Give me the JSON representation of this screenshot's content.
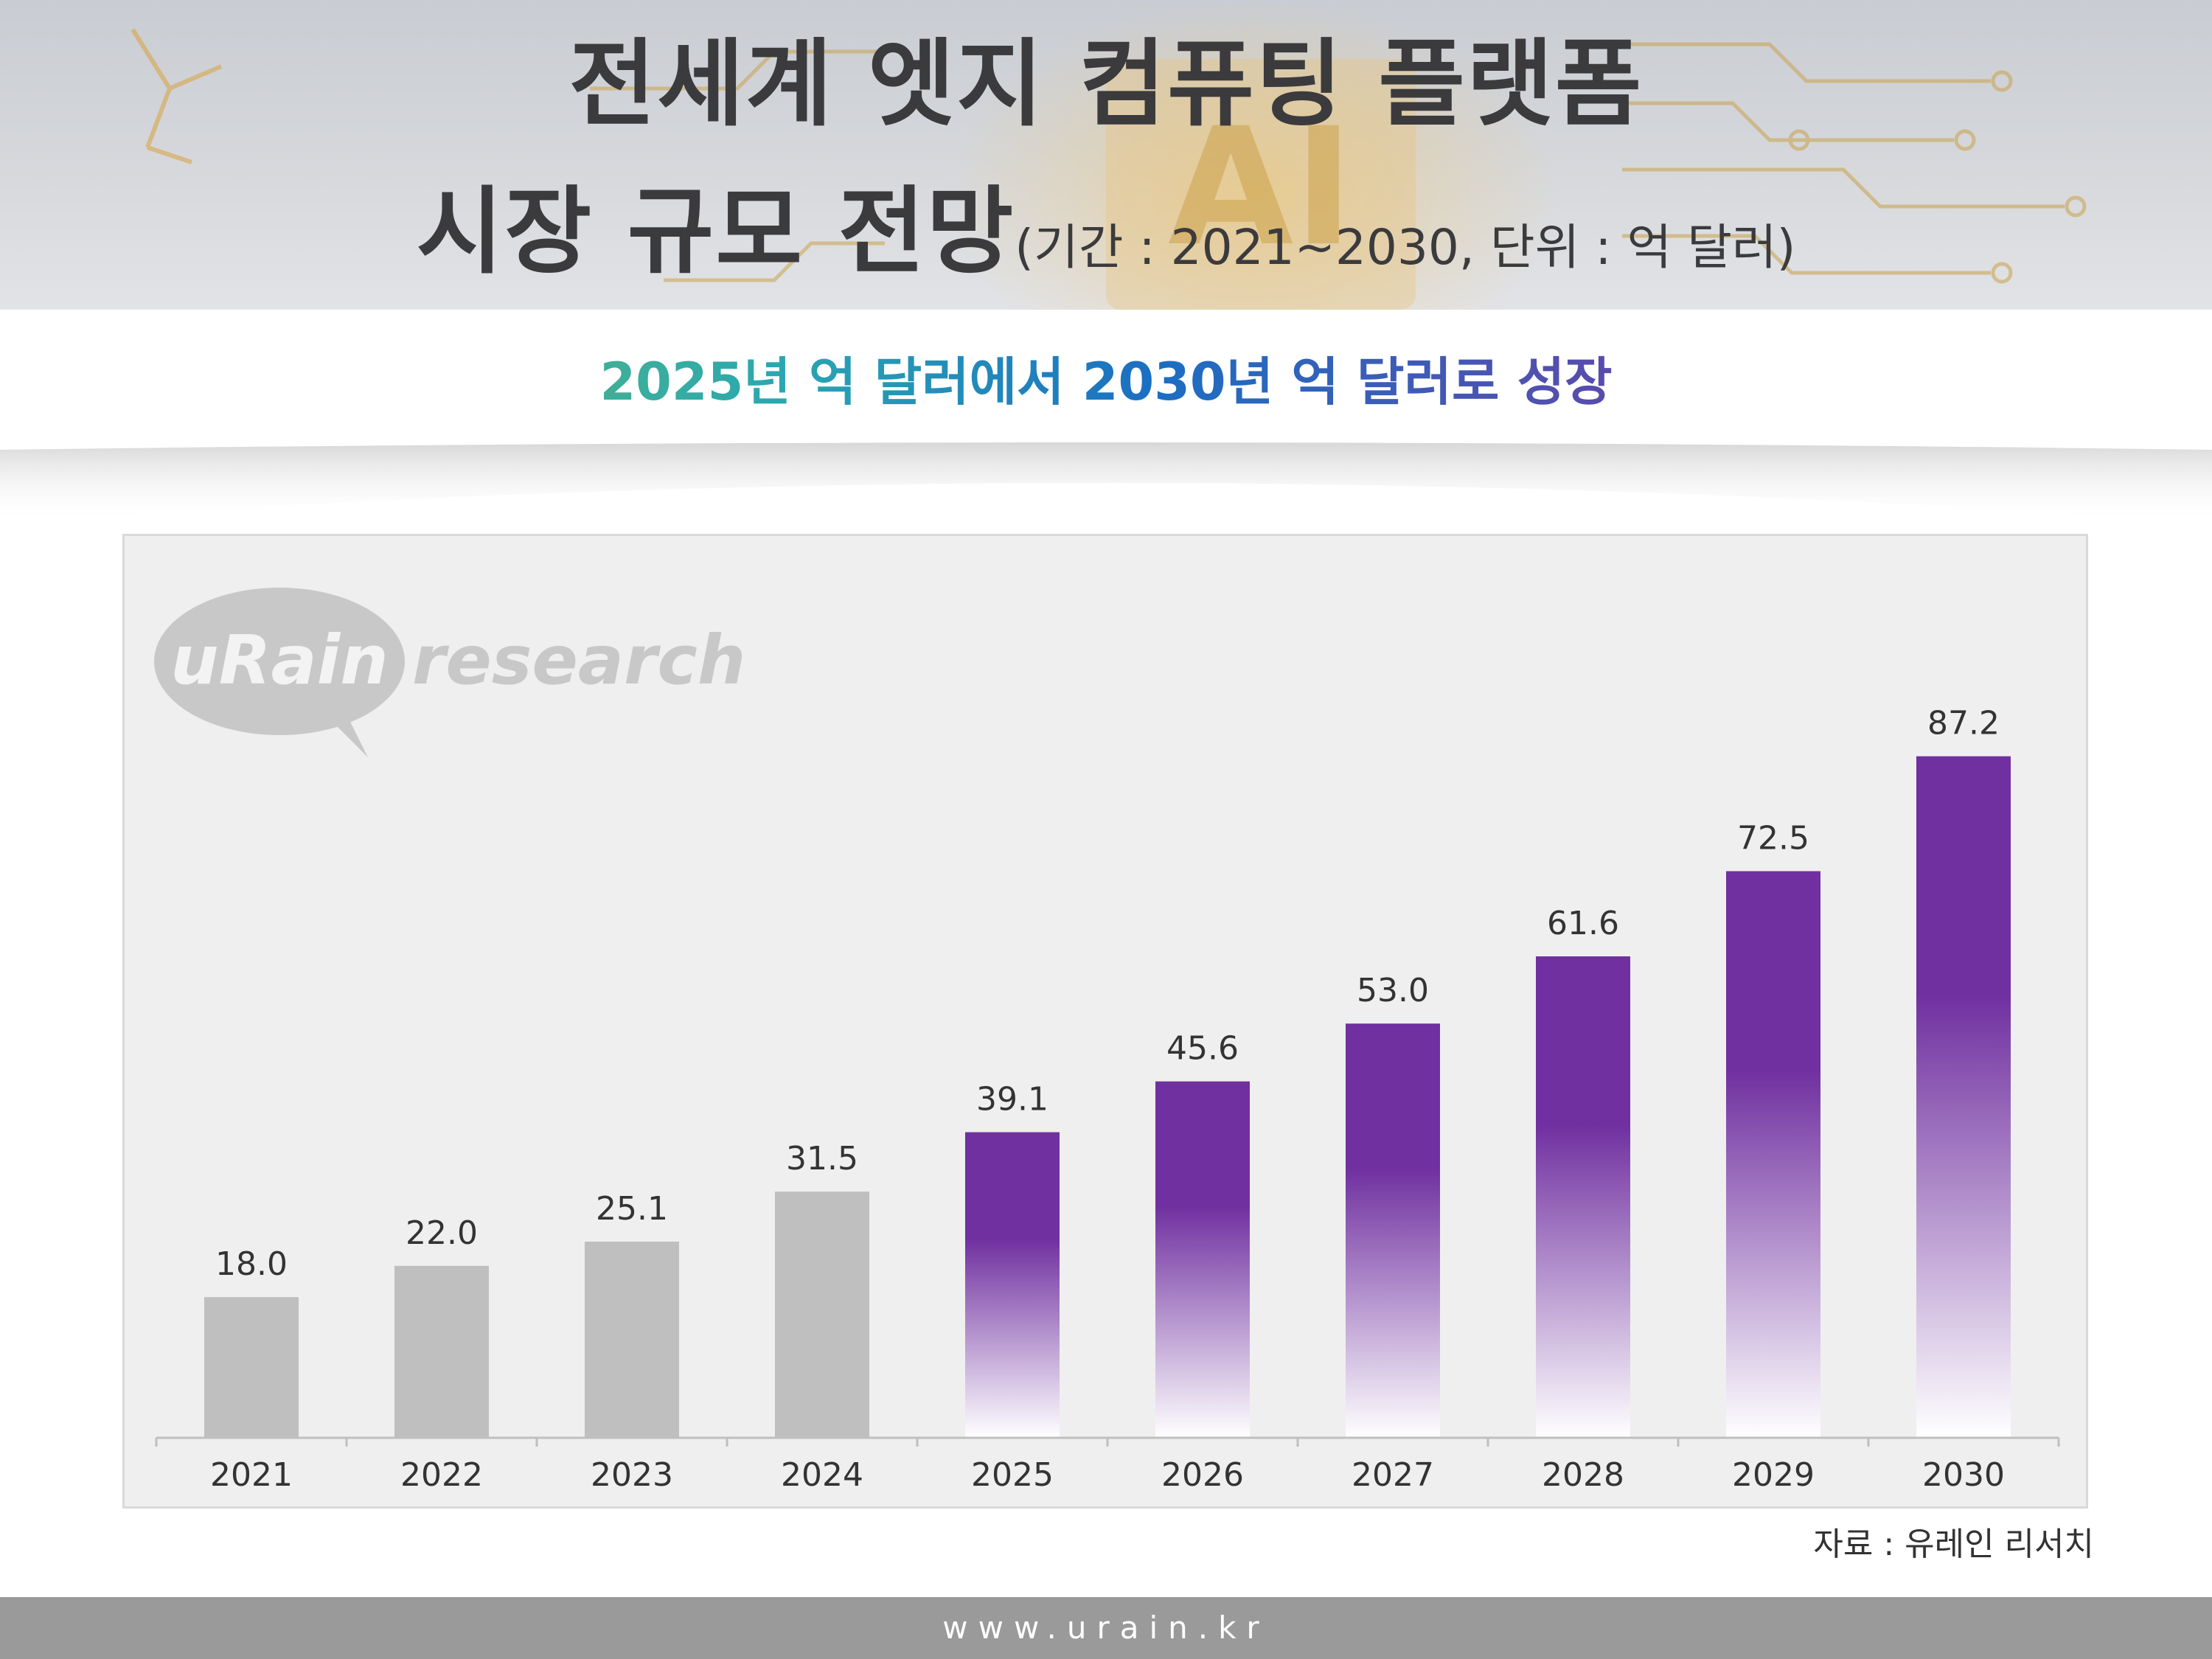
{
  "header": {
    "title_line1": "전세계 엣지 컴퓨팅 플랫폼",
    "title_line2": "시장 규모 전망",
    "title_note": "(기간 : 2021~2030, 단위 : 억 달러)",
    "chip_text": "AI"
  },
  "subtitle": "2025년 억 달러에서 2030년 억 달러로 성장",
  "logo": {
    "part1": "uRain",
    "part2": "research"
  },
  "chart_data": {
    "type": "bar",
    "categories": [
      "2021",
      "2022",
      "2023",
      "2024",
      "2025",
      "2026",
      "2027",
      "2028",
      "2029",
      "2030"
    ],
    "values": [
      18.0,
      22.0,
      25.1,
      31.5,
      39.1,
      45.6,
      53.0,
      61.6,
      72.5,
      87.2
    ],
    "data_labels": [
      "18.0",
      "22.0",
      "25.1",
      "31.5",
      "39.1",
      "45.6",
      "53.0",
      "61.6",
      "72.5",
      "87.2"
    ],
    "ylim": [
      0,
      100
    ],
    "grid": false,
    "colors": {
      "actual": "#bfbfbf",
      "forecast": "#7030a0"
    },
    "forecast_from_index": 4
  },
  "source": "자료 : 유레인 리서치",
  "footer": {
    "url": "www.urain.kr"
  }
}
